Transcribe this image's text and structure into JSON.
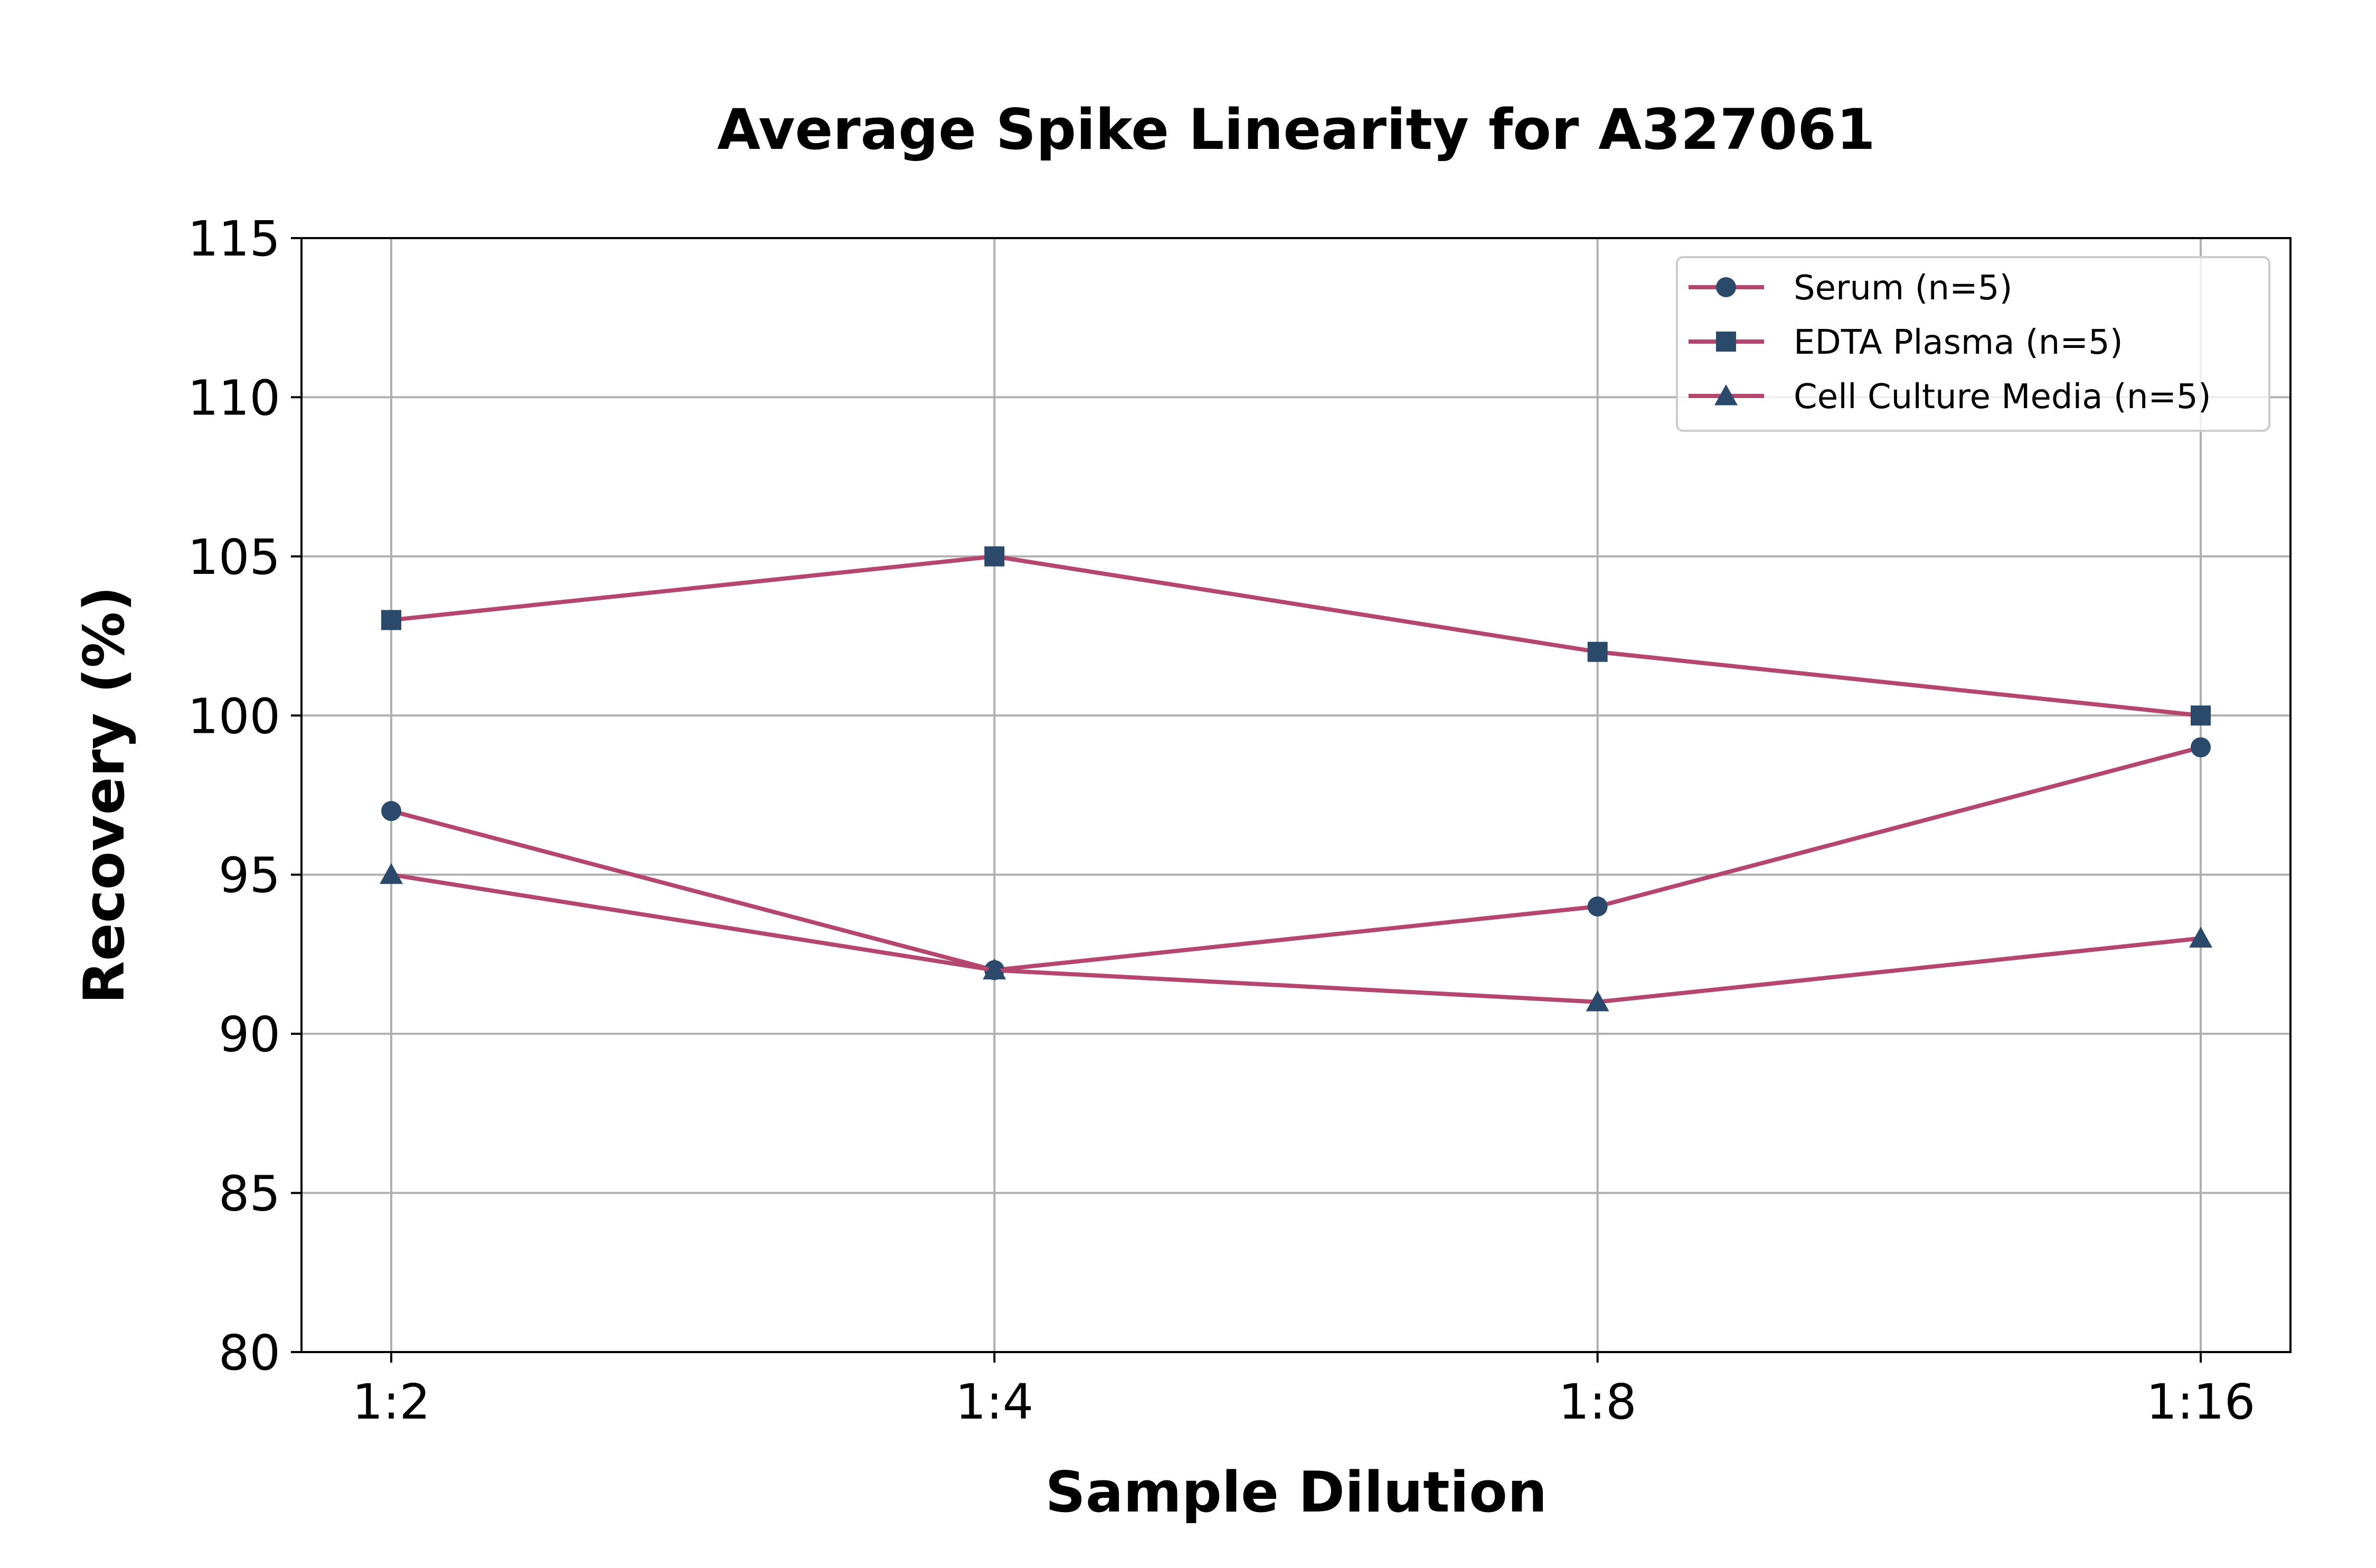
{
  "chart_data": {
    "type": "line",
    "title": "Average Spike Linearity for A327061",
    "xlabel": "Sample Dilution",
    "ylabel": "Recovery (%)",
    "categories": [
      "1:2",
      "1:4",
      "1:8",
      "1:16"
    ],
    "ylim": [
      80,
      115
    ],
    "yticks": [
      80,
      85,
      90,
      95,
      100,
      105,
      110,
      115
    ],
    "grid": true,
    "legend_position": "upper right",
    "series": [
      {
        "name": "Serum (n=5)",
        "values": [
          97,
          92,
          94,
          99
        ],
        "marker": "circle"
      },
      {
        "name": "EDTA Plasma (n=5)",
        "values": [
          103,
          105,
          102,
          100
        ],
        "marker": "square"
      },
      {
        "name": "Cell Culture Media (n=5)",
        "values": [
          95,
          92,
          91,
          93
        ],
        "marker": "triangle"
      }
    ],
    "colors": {
      "line": "#b5476f",
      "marker": "#2b4a6b"
    }
  }
}
